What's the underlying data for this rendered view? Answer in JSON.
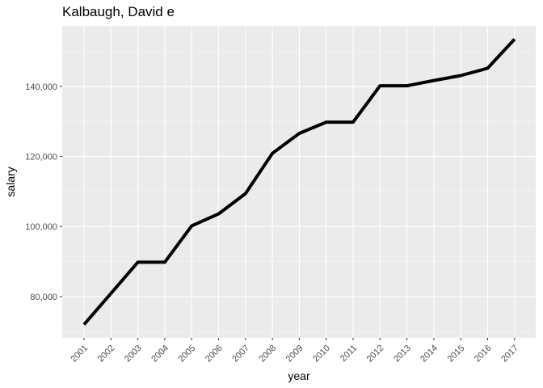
{
  "chart_data": {
    "type": "line",
    "title": "Kalbaugh, David e",
    "xlabel": "year",
    "ylabel": "salary",
    "x": [
      "2001",
      "2002",
      "2003",
      "2004",
      "2005",
      "2006",
      "2007",
      "2008",
      "2009",
      "2010",
      "2011",
      "2012",
      "2013",
      "2014",
      "2015",
      "2016",
      "2017"
    ],
    "series": [
      {
        "values": [
          72000,
          80900,
          89800,
          89800,
          100200,
          103600,
          109400,
          120900,
          126600,
          129800,
          129800,
          140200,
          140200,
          141700,
          143100,
          145200,
          153500
        ]
      }
    ],
    "yticks": [
      80000,
      100000,
      120000,
      140000
    ],
    "ytick_labels": [
      "80,000",
      "100,000",
      "120,000",
      "140,000"
    ],
    "ylim": [
      68200,
      157300
    ],
    "grid": true,
    "colors": {
      "panel": "#ebebeb",
      "grid": "#ffffff",
      "line": "#000000"
    }
  }
}
